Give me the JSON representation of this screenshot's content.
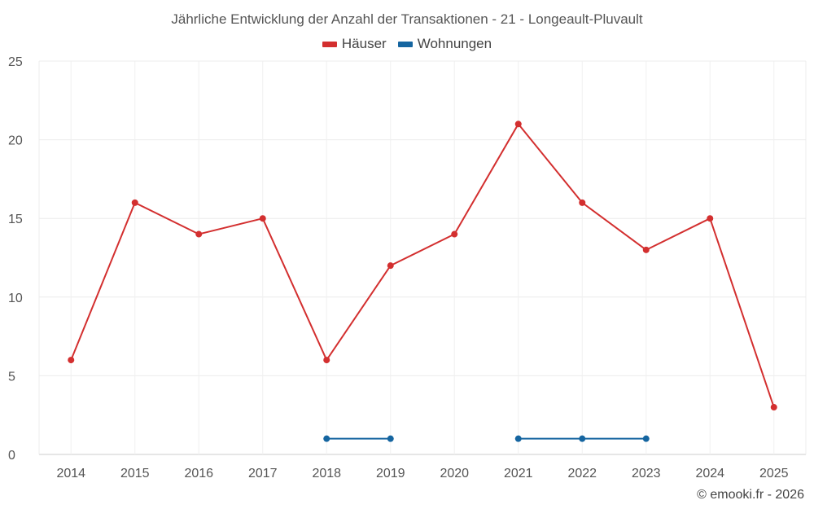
{
  "chart_data": {
    "type": "line",
    "title": "Jährliche Entwicklung der Anzahl der Transaktionen - 21 - Longeault-Pluvault",
    "categories": [
      "2014",
      "2015",
      "2016",
      "2017",
      "2018",
      "2019",
      "2020",
      "2021",
      "2022",
      "2023",
      "2024",
      "2025"
    ],
    "ylim": [
      0,
      25
    ],
    "yticks": [
      0,
      5,
      10,
      15,
      20,
      25
    ],
    "grid": true,
    "legend_position": "top-center",
    "series": [
      {
        "name": "Häuser",
        "color": "#d32f2f",
        "values": [
          6,
          16,
          14,
          15,
          6,
          12,
          14,
          21,
          16,
          13,
          15,
          3
        ]
      },
      {
        "name": "Wohnungen",
        "color": "#1565a0",
        "values": [
          null,
          null,
          null,
          null,
          1,
          1,
          null,
          1,
          1,
          1,
          null,
          null
        ]
      }
    ]
  },
  "footer": {
    "credit": "© emooki.fr - 2026"
  }
}
